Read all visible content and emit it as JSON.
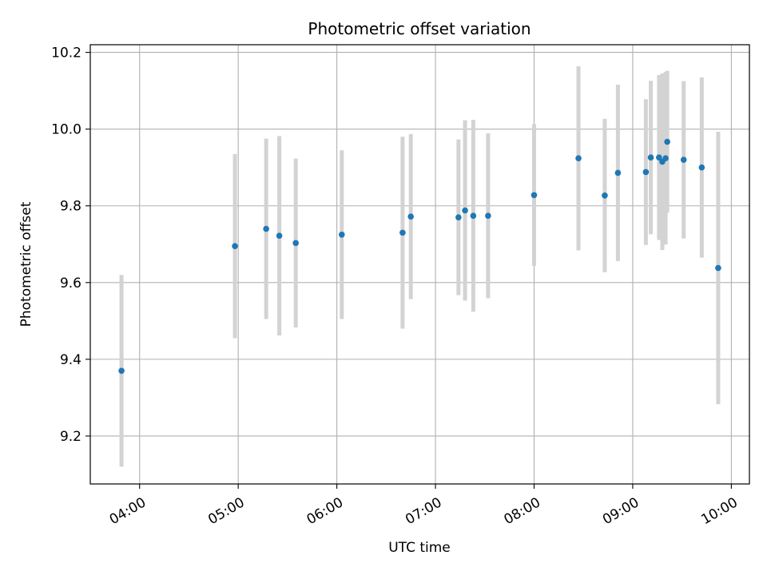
{
  "chart_data": {
    "type": "scatter",
    "title": "Photometric offset variation",
    "xlabel": "UTC time",
    "ylabel": "Photometric offset",
    "x_tick_labels": [
      "04:00",
      "05:00",
      "06:00",
      "07:00",
      "08:00",
      "09:00",
      "10:00"
    ],
    "y_tick_labels": [
      "9.2",
      "9.4",
      "9.6",
      "9.8",
      "10.0",
      "10.2"
    ],
    "y_ticks": [
      9.2,
      9.4,
      9.6,
      9.8,
      10.0,
      10.2
    ],
    "xlim": [
      "03:30",
      "10:11"
    ],
    "ylim": [
      9.075,
      10.22
    ],
    "grid": true,
    "marker_color": "#1f77b4",
    "errorbar_color": "#d3d3d3",
    "series": [
      {
        "points": [
          {
            "x": "03:49",
            "y": 9.37,
            "err": 0.25
          },
          {
            "x": "04:58",
            "y": 9.695,
            "err": 0.24
          },
          {
            "x": "05:17",
            "y": 9.74,
            "err": 0.235
          },
          {
            "x": "05:25",
            "y": 9.722,
            "err": 0.26
          },
          {
            "x": "05:35",
            "y": 9.703,
            "err": 0.22
          },
          {
            "x": "06:03",
            "y": 9.725,
            "err": 0.22
          },
          {
            "x": "06:40",
            "y": 9.73,
            "err": 0.25
          },
          {
            "x": "06:45",
            "y": 9.772,
            "err": 0.215
          },
          {
            "x": "07:14",
            "y": 9.77,
            "err": 0.203
          },
          {
            "x": "07:18",
            "y": 9.788,
            "err": 0.235
          },
          {
            "x": "07:23",
            "y": 9.774,
            "err": 0.25
          },
          {
            "x": "07:32",
            "y": 9.774,
            "err": 0.215
          },
          {
            "x": "08:00",
            "y": 9.828,
            "err": 0.185
          },
          {
            "x": "08:27",
            "y": 9.924,
            "err": 0.24
          },
          {
            "x": "08:43",
            "y": 9.827,
            "err": 0.2
          },
          {
            "x": "08:51",
            "y": 9.886,
            "err": 0.23
          },
          {
            "x": "09:08",
            "y": 9.888,
            "err": 0.19
          },
          {
            "x": "09:11",
            "y": 9.926,
            "err": 0.2
          },
          {
            "x": "09:16",
            "y": 9.926,
            "err": 0.215
          },
          {
            "x": "09:18",
            "y": 9.915,
            "err": 0.23
          },
          {
            "x": "09:20",
            "y": 9.924,
            "err": 0.225
          },
          {
            "x": "09:21",
            "y": 9.967,
            "err": 0.185
          },
          {
            "x": "09:31",
            "y": 9.92,
            "err": 0.205
          },
          {
            "x": "09:42",
            "y": 9.9,
            "err": 0.235
          },
          {
            "x": "09:52",
            "y": 9.638,
            "err": 0.355
          }
        ]
      }
    ]
  }
}
